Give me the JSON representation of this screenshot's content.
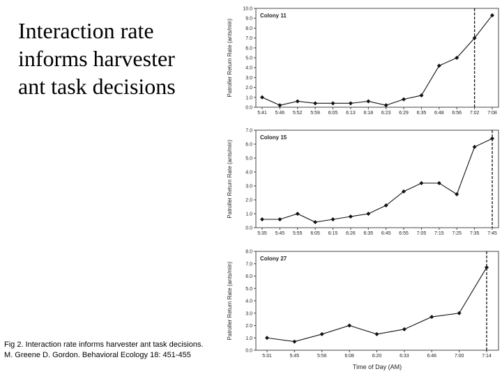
{
  "title_lines": [
    "Interaction rate",
    "informs harvester",
    "ant task decisions"
  ],
  "caption": "Fig 2. Interaction rate informs harvester ant task decisions. M. Greene D. Gordon. Behavioral Ecology 18: 451-455",
  "chart_data": [
    {
      "type": "line",
      "title": "Colony 11",
      "ylabel": "Patroller Return Rate (ants/min)",
      "xlabel": "",
      "ylim": [
        0.0,
        10.0
      ],
      "yticks": [
        "0.0",
        "1.0",
        "2.0",
        "3.0",
        "4.0",
        "5.0",
        "6.0",
        "7.0",
        "8.0",
        "9.0",
        "10.0"
      ],
      "categories": [
        "5:41",
        "5:46",
        "5:52",
        "5:59",
        "6:05",
        "6:13",
        "6:18",
        "6:23",
        "6:29",
        "6:35",
        "6:48",
        "6:56",
        "7:02",
        "7:08"
      ],
      "values": [
        1.0,
        0.2,
        0.6,
        0.4,
        0.4,
        0.4,
        0.6,
        0.2,
        0.8,
        1.2,
        4.2,
        5.0,
        7.0,
        9.3
      ],
      "event_line_index": 12
    },
    {
      "type": "line",
      "title": "Colony 15",
      "ylabel": "Patroller Return Rate (ants/min)",
      "xlabel": "",
      "ylim": [
        0.0,
        7.0
      ],
      "yticks": [
        "0.0",
        "1.0",
        "2.0",
        "3.0",
        "4.0",
        "5.0",
        "6.0",
        "7.0"
      ],
      "categories": [
        "5:35",
        "5:45",
        "5:55",
        "6:05",
        "6:15",
        "6:26",
        "6:35",
        "6:45",
        "6:55",
        "7:05",
        "7:15",
        "7:25",
        "7:35",
        "7:45"
      ],
      "values": [
        0.6,
        0.6,
        1.0,
        0.4,
        0.6,
        0.8,
        1.0,
        1.6,
        2.6,
        3.2,
        3.2,
        2.4,
        5.8,
        6.4
      ],
      "event_line_index": 13
    },
    {
      "type": "line",
      "title": "Colony 27",
      "ylabel": "Patroller Return Rate (ants/min)",
      "xlabel": "Time of Day (AM)",
      "ylim": [
        0.0,
        8.0
      ],
      "yticks": [
        "0.0",
        "1.0",
        "2.0",
        "3.0",
        "4.0",
        "5.0",
        "6.0",
        "7.0",
        "8.0"
      ],
      "categories": [
        "5:31",
        "5:45",
        "5:56",
        "6:08",
        "6:20",
        "6:33",
        "6:46",
        "7:00",
        "7:14"
      ],
      "values": [
        1.0,
        0.7,
        1.3,
        2.0,
        1.3,
        1.7,
        2.7,
        3.0,
        6.7
      ],
      "event_line_index": 8
    }
  ]
}
